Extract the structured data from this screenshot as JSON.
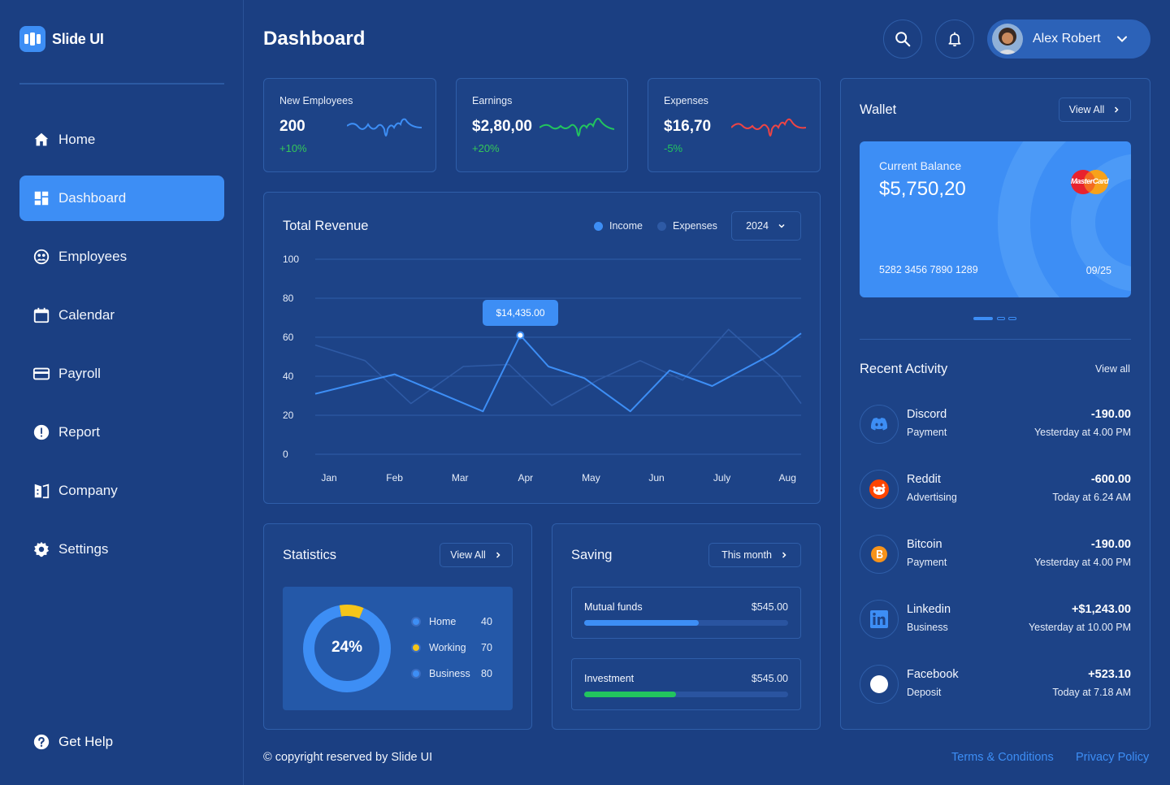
{
  "app": {
    "name": "Slide UI"
  },
  "sidebar": {
    "items": [
      {
        "label": "Home",
        "icon": "home-icon",
        "active": false
      },
      {
        "label": "Dashboard",
        "icon": "dashboard-icon",
        "active": true
      },
      {
        "label": "Employees",
        "icon": "employees-icon",
        "active": false
      },
      {
        "label": "Calendar",
        "icon": "calendar-icon",
        "active": false
      },
      {
        "label": "Payroll",
        "icon": "payroll-icon",
        "active": false
      },
      {
        "label": "Report",
        "icon": "report-icon",
        "active": false
      },
      {
        "label": "Company",
        "icon": "company-icon",
        "active": false
      },
      {
        "label": "Settings",
        "icon": "gear-icon",
        "active": false
      }
    ],
    "help_label": "Get Help"
  },
  "header": {
    "title": "Dashboard",
    "user_name": "Alex Robert"
  },
  "kpis": [
    {
      "label": "New Employees",
      "value": "200",
      "change": "+10%",
      "color": "#3d8ef5"
    },
    {
      "label": "Earnings",
      "value": "$2,80,00",
      "change": "+20%",
      "color": "#22c55e"
    },
    {
      "label": "Expenses",
      "value": "$16,70",
      "change": "-5%",
      "color": "#ef4444"
    }
  ],
  "revenue": {
    "title": "Total Revenue",
    "legend_income": "Income",
    "legend_expenses": "Expenses",
    "year": "2024",
    "tooltip": "$14,435.00"
  },
  "chart_data": {
    "type": "line",
    "title": "Total Revenue",
    "categories": [
      "Jan",
      "Feb",
      "Mar",
      "Apr",
      "May",
      "Jun",
      "July",
      "Aug"
    ],
    "y_ticks": [
      "100",
      "80",
      "60",
      "40",
      "20",
      "0"
    ],
    "ylim": [
      0,
      100
    ],
    "grid": true,
    "legend": "top-right",
    "series": [
      {
        "name": "Income",
        "color": "#3d8ef5",
        "x": [
          0,
          1,
          2.35,
          2.92,
          3.35,
          3.9,
          4.6,
          5.2,
          5.85,
          6.8,
          7.4
        ],
        "y": [
          31,
          41,
          22,
          61,
          45,
          39,
          22,
          43,
          35,
          52,
          62
        ]
      },
      {
        "name": "Expenses",
        "color": "#2e5aa5",
        "x": [
          0,
          0.55,
          1.25,
          2.05,
          2.75,
          3.4,
          4.1,
          4.75,
          5.4,
          6.1,
          6.9,
          7.4
        ],
        "y": [
          56,
          48,
          26,
          45,
          46,
          25,
          38,
          48,
          38,
          64,
          40,
          26
        ]
      }
    ],
    "highlight": {
      "series": "Income",
      "x": 2.92,
      "y": 61
    }
  },
  "statistics": {
    "title": "Statistics",
    "view_all": "View All",
    "center_label": "24%",
    "legend": [
      {
        "label": "Home",
        "value": "40",
        "color": "#3d8ef5"
      },
      {
        "label": "Working",
        "value": "70",
        "color": "#f5c518"
      },
      {
        "label": "Business",
        "value": "80",
        "color": "#3d8ef5"
      }
    ],
    "donut_segments": [
      {
        "share": 0.09,
        "color": "#f5c518"
      },
      {
        "share": 0.91,
        "color": "#3d8ef5"
      }
    ]
  },
  "saving": {
    "title": "Saving",
    "period": "This month",
    "items": [
      {
        "name": "Mutual funds",
        "amount": "$545.00",
        "progress": 0.56,
        "color": "#3d8ef5"
      },
      {
        "name": "Investment",
        "amount": "$545.00",
        "progress": 0.45,
        "color": "#22c55e"
      }
    ]
  },
  "wallet": {
    "title": "Wallet",
    "view_all": "View All",
    "balance_label": "Current Balance",
    "balance": "$5,750,20",
    "card_number": "5282 3456 7890 1289",
    "expiry": "09/25",
    "card_brand": "MasterCard"
  },
  "activity": {
    "title": "Recent Activity",
    "view_all": "View all",
    "items": [
      {
        "name": "Discord",
        "type": "Payment",
        "amount": "-190.00",
        "time": "Yesterday at 4.00 PM",
        "icon": "discord-icon"
      },
      {
        "name": "Reddit",
        "type": "Advertising",
        "amount": "-600.00",
        "time": "Today at 6.24 AM",
        "icon": "reddit-icon"
      },
      {
        "name": "Bitcoin",
        "type": "Payment",
        "amount": "-190.00",
        "time": "Yesterday at 4.00 PM",
        "icon": "bitcoin-icon"
      },
      {
        "name": "Linkedin",
        "type": "Business",
        "amount": "+$1,243.00",
        "time": "Yesterday at 10.00 PM",
        "icon": "linkedin-icon"
      },
      {
        "name": "Facebook",
        "type": "Deposit",
        "amount": "+523.10",
        "time": "Today at 7.18 AM",
        "icon": "facebook-icon"
      }
    ]
  },
  "footer": {
    "copyright": "© copyright reserved by Slide UI",
    "terms": "Terms & Conditions",
    "privacy": "Privacy Policy"
  }
}
